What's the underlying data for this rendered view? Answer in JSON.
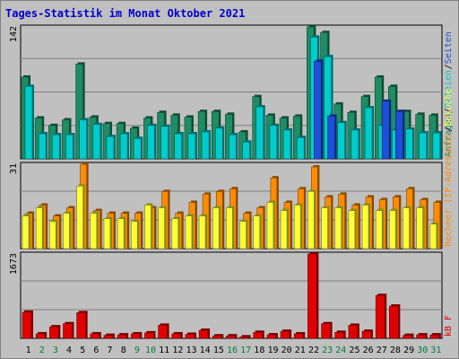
{
  "chart_data": {
    "type": "bar",
    "title": "Tages-Statistik im Monat Oktober 2021",
    "categories": [
      "1",
      "2",
      "3",
      "4",
      "5",
      "6",
      "7",
      "8",
      "9",
      "10",
      "11",
      "12",
      "13",
      "14",
      "15",
      "16",
      "17",
      "18",
      "19",
      "20",
      "21",
      "22",
      "23",
      "24",
      "25",
      "26",
      "27",
      "28",
      "29",
      "30",
      "31"
    ],
    "weekend_days": [
      "2",
      "3",
      "9",
      "10",
      "16",
      "17",
      "23",
      "24",
      "30",
      "31"
    ],
    "colors": {
      "title": "#0000cc",
      "day_weekday": "#000000",
      "day_weekend": "#007f3f",
      "anfragen": "#1e8c64",
      "dateien": "#00cccc",
      "seiten": "#1d4fdc",
      "rechner": "#ff8c00",
      "visits": "#ffff33",
      "kb": "#e00000",
      "separator": "#000000",
      "slash": "#000000"
    },
    "panels": [
      {
        "id": "requests",
        "ymax": 142,
        "ymax_label": "142",
        "legend": [
          {
            "name": "Anfragen",
            "color": "#1e8c64"
          },
          {
            "name": "Dateien",
            "color": "#00cccc"
          },
          {
            "name": "Seiten",
            "color": "#1d4fdc"
          }
        ],
        "series": [
          {
            "name": "Anfragen",
            "values": [
              88,
              44,
              36,
              42,
              102,
              45,
              38,
              38,
              33,
              44,
              50,
              47,
              45,
              51,
              51,
              48,
              29,
              67,
              47,
              44,
              46,
              142,
              136,
              59,
              50,
              67,
              88,
              78,
              51,
              48,
              47
            ]
          },
          {
            "name": "Dateien",
            "values": [
              78,
              27,
              26,
              26,
              42,
              37,
              24,
              27,
              22,
              36,
              35,
              27,
              27,
              29,
              33,
              26,
              18,
              56,
              36,
              31,
              23,
              131,
              110,
              39,
              31,
              55,
              36,
              31,
              32,
              28,
              28
            ]
          },
          {
            "name": "Seiten",
            "values": [
              0,
              0,
              0,
              0,
              0,
              0,
              0,
              0,
              0,
              0,
              0,
              0,
              0,
              0,
              0,
              0,
              0,
              0,
              0,
              0,
              0,
              105,
              46,
              0,
              0,
              0,
              62,
              51,
              0,
              0,
              0
            ]
          }
        ]
      },
      {
        "id": "hosts",
        "ymax": 31,
        "ymax_label": "31",
        "legend": [
          {
            "name": "Rechner (IP-Adressen)",
            "color": "#ff8c00"
          },
          {
            "name": "Besuche",
            "color": "#ffff33"
          }
        ],
        "series": [
          {
            "name": "Rechner (IP-Adressen)",
            "values": [
              13,
              16,
              12,
              15,
              31,
              14,
              13,
              13,
              13,
              15,
              21,
              13,
              17,
              20,
              21,
              22,
              13,
              15,
              26,
              17,
              22,
              30,
              19,
              20,
              16,
              19,
              18,
              19,
              22,
              18,
              17
            ]
          },
          {
            "name": "Besuche",
            "values": [
              12,
              15,
              10,
              13,
              23,
              13,
              11,
              11,
              10,
              16,
              15,
              11,
              12,
              12,
              15,
              15,
              10,
              12,
              17,
              14,
              16,
              21,
              15,
              15,
              14,
              16,
              14,
              14,
              15,
              15,
              9
            ]
          }
        ]
      },
      {
        "id": "traffic",
        "ymax": 1673,
        "ymax_label": "1673",
        "legend": [
          {
            "name": "kB F",
            "color": "#e00000"
          }
        ],
        "series": [
          {
            "name": "kB F",
            "values": [
              520,
              90,
              230,
              290,
              510,
              90,
              60,
              70,
              90,
              110,
              260,
              90,
              80,
              160,
              50,
              50,
              30,
              120,
              70,
              140,
              90,
              1673,
              290,
              120,
              260,
              140,
              850,
              640,
              60,
              70,
              70
            ]
          }
        ]
      }
    ]
  }
}
